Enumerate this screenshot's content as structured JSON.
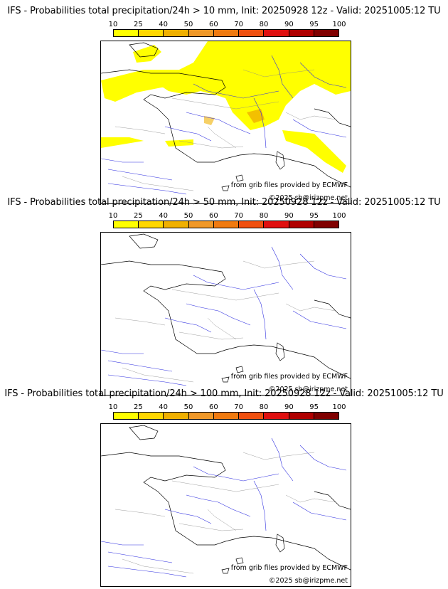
{
  "scale": {
    "labels": [
      "10",
      "25",
      "40",
      "50",
      "60",
      "70",
      "80",
      "90",
      "95",
      "100"
    ],
    "colors": [
      "#ffff00",
      "#ffd700",
      "#f0b000",
      "#f09828",
      "#f07a10",
      "#f05010",
      "#e01010",
      "#b00000",
      "#800000"
    ]
  },
  "panels": [
    {
      "title": "IFS - Probabilities total precipitation/24h > 10 mm, Init: 20250928 12z - Valid: 20251005:12 TU",
      "credit": "from grib files provided by ECMWF",
      "copyright": "©2025 sb@irizpme.net"
    },
    {
      "title": "IFS - Probabilities total precipitation/24h > 50 mm, Init: 20250928 12z - Valid: 20251005:12 TU",
      "credit": "from grib files provided by ECMWF",
      "copyright": "©2025 sb@irizpme.net"
    },
    {
      "title": "IFS - Probabilities total precipitation/24h > 100 mm, Init: 20250928 12z - Valid: 20251005:12 TU",
      "credit": "from grib files provided by ECMWF",
      "copyright": "©2025 sb@irizpme.net"
    }
  ]
}
